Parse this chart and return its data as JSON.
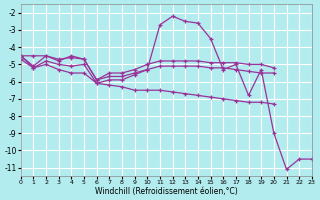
{
  "xlabel": "Windchill (Refroidissement éolien,°C)",
  "bg_color": "#b3ecee",
  "grid_color": "#ffffff",
  "line_color": "#993399",
  "xlim": [
    0,
    23
  ],
  "ylim": [
    -11.5,
    -1.5
  ],
  "yticks": [
    -11,
    -10,
    -9,
    -8,
    -7,
    -6,
    -5,
    -4,
    -3,
    -2
  ],
  "xticks": [
    0,
    1,
    2,
    3,
    4,
    5,
    6,
    7,
    8,
    9,
    10,
    11,
    12,
    13,
    14,
    15,
    16,
    17,
    18,
    19,
    20,
    21,
    22,
    23
  ],
  "lines": [
    {
      "x": [
        0,
        1,
        2,
        3,
        4,
        5,
        6,
        7,
        8,
        9,
        10,
        11,
        12,
        13,
        14,
        15,
        16,
        17,
        18,
        19,
        20,
        21,
        22,
        23
      ],
      "y": [
        -4.5,
        -5.1,
        -4.5,
        -4.8,
        -4.5,
        -4.7,
        -5.9,
        -5.7,
        -5.7,
        -5.5,
        -5.3,
        -2.7,
        -2.2,
        -2.5,
        -2.6,
        -3.5,
        -5.3,
        -5.0,
        -6.8,
        -5.3,
        -9.0,
        -11.1,
        -10.5,
        -10.5
      ]
    },
    {
      "x": [
        0,
        1,
        2,
        3,
        4,
        5,
        6,
        7,
        8,
        9,
        10,
        11,
        12,
        13,
        14,
        15,
        16,
        17,
        18,
        19,
        20
      ],
      "y": [
        -4.5,
        -4.5,
        -4.5,
        -4.7,
        -4.6,
        -4.7,
        -5.9,
        -5.5,
        -5.5,
        -5.3,
        -5.0,
        -4.8,
        -4.8,
        -4.8,
        -4.8,
        -4.9,
        -4.9,
        -4.9,
        -5.0,
        -5.0,
        -5.2
      ]
    },
    {
      "x": [
        0,
        1,
        2,
        3,
        4,
        5,
        6,
        7,
        8,
        9,
        10,
        11,
        12,
        13,
        14,
        15,
        16,
        17,
        18,
        19,
        20
      ],
      "y": [
        -4.7,
        -5.2,
        -4.8,
        -5.0,
        -5.1,
        -5.0,
        -6.1,
        -5.9,
        -5.9,
        -5.6,
        -5.3,
        -5.1,
        -5.1,
        -5.1,
        -5.1,
        -5.2,
        -5.2,
        -5.3,
        -5.4,
        -5.5,
        -5.5
      ]
    },
    {
      "x": [
        0,
        1,
        2,
        3,
        4,
        5,
        6,
        7,
        8,
        9,
        10,
        11,
        12,
        13,
        14,
        15,
        16,
        17,
        18,
        19,
        20
      ],
      "y": [
        -4.5,
        -5.2,
        -5.0,
        -5.3,
        -5.5,
        -5.5,
        -6.1,
        -6.2,
        -6.3,
        -6.5,
        -6.5,
        -6.5,
        -6.6,
        -6.7,
        -6.8,
        -6.9,
        -7.0,
        -7.1,
        -7.2,
        -7.2,
        -7.3
      ]
    }
  ]
}
